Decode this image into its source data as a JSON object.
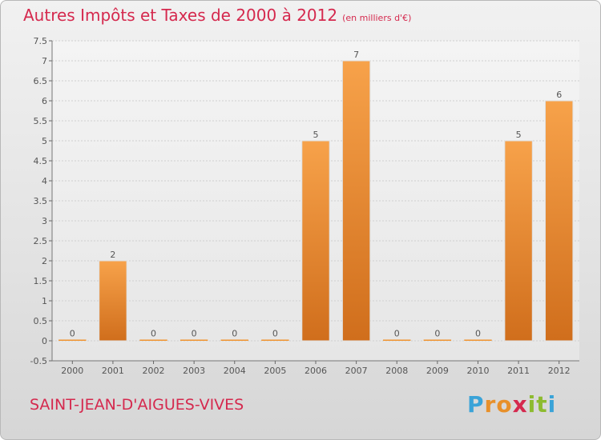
{
  "title": {
    "main": "Autres Impôts et Taxes de 2000 à 2012",
    "unit": "(en milliers d'€)"
  },
  "commune": "SAINT-JEAN-D'AIGUES-VIVES",
  "logo": {
    "letters": [
      "P",
      "r",
      "o",
      "x",
      "i",
      "t",
      "i"
    ],
    "colors": [
      "#3aa3d8",
      "#e8902a",
      "#e8902a",
      "#d5294e",
      "#8dbb2f",
      "#8dbb2f",
      "#3aa3d8"
    ]
  },
  "chart_data": {
    "type": "bar",
    "categories": [
      "2000",
      "2001",
      "2002",
      "2003",
      "2004",
      "2005",
      "2006",
      "2007",
      "2008",
      "2009",
      "2010",
      "2011",
      "2012"
    ],
    "values": [
      0,
      2,
      0,
      0,
      0,
      0,
      5,
      7,
      0,
      0,
      0,
      5,
      6
    ],
    "value_labels": [
      "0",
      "2",
      "0",
      "0",
      "0",
      "0",
      "5",
      "7",
      "0",
      "0",
      "0",
      "5",
      "6"
    ],
    "y_ticks": [
      "-0.5",
      "0",
      "0.5",
      "1",
      "1.5",
      "2",
      "2.5",
      "3",
      "3.5",
      "4",
      "4.5",
      "5",
      "5.5",
      "6",
      "6.5",
      "7",
      "7.5"
    ],
    "ylim": [
      -0.5,
      7.5
    ],
    "grid": true,
    "bar_color": "#f0932f"
  }
}
